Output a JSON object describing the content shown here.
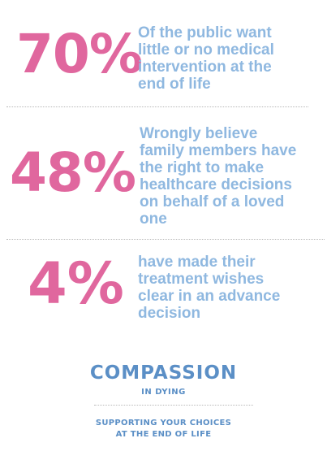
{
  "stats": [
    {
      "value": "70%",
      "lines": [
        "Of the public want",
        "little or no  medical",
        "intervention at the",
        "end of life"
      ]
    },
    {
      "value": "48%",
      "lines": [
        "Wrongly believe",
        "family members have",
        "the right to make",
        "healthcare decisions",
        "on behalf of a loved",
        "one"
      ]
    },
    {
      "value": "4%",
      "lines": [
        "have made their",
        "treatment wishes",
        "clear in an advance",
        "decision"
      ]
    }
  ],
  "logo": {
    "name": "COMPASSION",
    "sub": "IN DYING"
  },
  "tagline": {
    "line1": "SUPPORTING YOUR CHOICES",
    "line2": "AT THE END OF LIFE"
  },
  "colors": {
    "percent": "#e0679e",
    "description": "#8fb8e0",
    "logo": "#5b8fc6"
  }
}
